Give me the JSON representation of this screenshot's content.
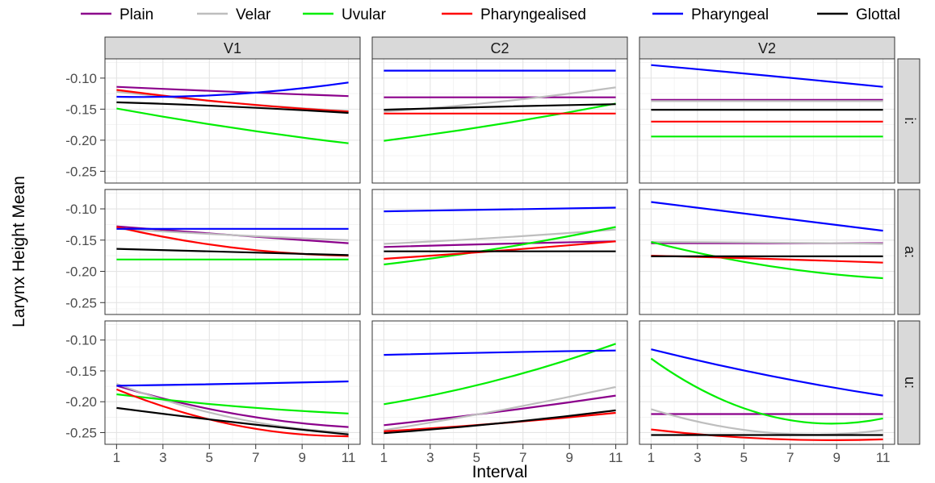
{
  "chart_data": {
    "type": "line",
    "xlabel": "Interval",
    "ylabel": "Larynx Height Mean",
    "columns": [
      "V1",
      "C2",
      "V2"
    ],
    "rows": [
      "i:",
      "a:",
      "u:"
    ],
    "x_ticks": [
      1,
      3,
      5,
      7,
      9,
      11
    ],
    "y_ticks": [
      -0.1,
      -0.15,
      -0.2,
      -0.25
    ],
    "y_tick_labels": [
      "-0.10",
      "-0.15",
      "-0.20",
      "-0.25"
    ],
    "xlim": [
      0.5,
      11.5
    ],
    "ylim": [
      -0.269,
      -0.069
    ],
    "grid": true,
    "legend_position": "top",
    "series": [
      {
        "name": "Plain",
        "color": "#8B008B"
      },
      {
        "name": "Velar",
        "color": "#BEBEBE"
      },
      {
        "name": "Uvular",
        "color": "#00EE00"
      },
      {
        "name": "Pharyngealised",
        "color": "#FF0000"
      },
      {
        "name": "Pharyngeal",
        "color": "#0000FF"
      },
      {
        "name": "Glottal",
        "color": "#000000"
      }
    ],
    "panels": [
      {
        "column": "V1",
        "row": "i:",
        "lines": {
          "Plain": [
            [
              1,
              -0.114
            ],
            [
              6,
              -0.122
            ],
            [
              11,
              -0.129
            ]
          ],
          "Velar": [
            [
              1,
              -0.122
            ],
            [
              6,
              -0.14
            ],
            [
              11,
              -0.153
            ]
          ],
          "Uvular": [
            [
              1,
              -0.149
            ],
            [
              6,
              -0.18
            ],
            [
              11,
              -0.205
            ]
          ],
          "Pharyngealised": [
            [
              1,
              -0.119
            ],
            [
              6,
              -0.14
            ],
            [
              11,
              -0.154
            ]
          ],
          "Pharyngeal": [
            [
              1,
              -0.13
            ],
            [
              6,
              -0.126
            ],
            [
              11,
              -0.107
            ]
          ],
          "Glottal": [
            [
              1,
              -0.139
            ],
            [
              6,
              -0.146
            ],
            [
              11,
              -0.156
            ]
          ]
        }
      },
      {
        "column": "C2",
        "row": "i:",
        "lines": {
          "Plain": [
            [
              1,
              -0.131
            ],
            [
              6,
              -0.131
            ],
            [
              11,
              -0.131
            ]
          ],
          "Velar": [
            [
              1,
              -0.154
            ],
            [
              6,
              -0.138
            ],
            [
              11,
              -0.115
            ]
          ],
          "Uvular": [
            [
              1,
              -0.201
            ],
            [
              6,
              -0.174
            ],
            [
              11,
              -0.141
            ]
          ],
          "Pharyngealised": [
            [
              1,
              -0.157
            ],
            [
              6,
              -0.157
            ],
            [
              11,
              -0.157
            ]
          ],
          "Pharyngeal": [
            [
              1,
              -0.088
            ],
            [
              6,
              -0.088
            ],
            [
              11,
              -0.088
            ]
          ],
          "Glottal": [
            [
              1,
              -0.151
            ],
            [
              6,
              -0.146
            ],
            [
              11,
              -0.142
            ]
          ]
        }
      },
      {
        "column": "V2",
        "row": "i:",
        "lines": {
          "Plain": [
            [
              1,
              -0.135
            ],
            [
              6,
              -0.135
            ],
            [
              11,
              -0.135
            ]
          ],
          "Velar": [
            [
              1,
              -0.137
            ],
            [
              6,
              -0.137
            ],
            [
              11,
              -0.137
            ]
          ],
          "Uvular": [
            [
              1,
              -0.194
            ],
            [
              6,
              -0.194
            ],
            [
              11,
              -0.194
            ]
          ],
          "Pharyngealised": [
            [
              1,
              -0.17
            ],
            [
              6,
              -0.17
            ],
            [
              11,
              -0.17
            ]
          ],
          "Pharyngeal": [
            [
              1,
              -0.079
            ],
            [
              6,
              -0.096
            ],
            [
              11,
              -0.114
            ]
          ],
          "Glottal": [
            [
              1,
              -0.151
            ],
            [
              6,
              -0.151
            ],
            [
              11,
              -0.151
            ]
          ]
        }
      },
      {
        "column": "V1",
        "row": "a:",
        "lines": {
          "Plain": [
            [
              1,
              -0.128
            ],
            [
              6,
              -0.142
            ],
            [
              11,
              -0.155
            ]
          ],
          "Velar": [
            [
              1,
              -0.132
            ],
            [
              6,
              -0.142
            ],
            [
              11,
              -0.15
            ]
          ],
          "Uvular": [
            [
              1,
              -0.181
            ],
            [
              6,
              -0.181
            ],
            [
              11,
              -0.181
            ]
          ],
          "Pharyngealised": [
            [
              1,
              -0.129
            ],
            [
              6,
              -0.162
            ],
            [
              11,
              -0.175
            ]
          ],
          "Pharyngeal": [
            [
              1,
              -0.132
            ],
            [
              6,
              -0.132
            ],
            [
              11,
              -0.132
            ]
          ],
          "Glottal": [
            [
              1,
              -0.164
            ],
            [
              6,
              -0.169
            ],
            [
              11,
              -0.174
            ]
          ]
        }
      },
      {
        "column": "C2",
        "row": "a:",
        "lines": {
          "Plain": [
            [
              1,
              -0.161
            ],
            [
              6,
              -0.156
            ],
            [
              11,
              -0.152
            ]
          ],
          "Velar": [
            [
              1,
              -0.156
            ],
            [
              6,
              -0.146
            ],
            [
              11,
              -0.133
            ]
          ],
          "Uvular": [
            [
              1,
              -0.189
            ],
            [
              6,
              -0.163
            ],
            [
              11,
              -0.129
            ]
          ],
          "Pharyngealised": [
            [
              1,
              -0.18
            ],
            [
              6,
              -0.167
            ],
            [
              11,
              -0.152
            ]
          ],
          "Pharyngeal": [
            [
              1,
              -0.104
            ],
            [
              6,
              -0.101
            ],
            [
              11,
              -0.098
            ]
          ],
          "Glottal": [
            [
              1,
              -0.168
            ],
            [
              6,
              -0.168
            ],
            [
              11,
              -0.168
            ]
          ]
        }
      },
      {
        "column": "V2",
        "row": "a:",
        "lines": {
          "Plain": [
            [
              1,
              -0.155
            ],
            [
              6,
              -0.155
            ],
            [
              11,
              -0.155
            ]
          ],
          "Velar": [
            [
              1,
              -0.153
            ],
            [
              6,
              -0.154
            ],
            [
              11,
              -0.156
            ]
          ],
          "Uvular": [
            [
              1,
              -0.153
            ],
            [
              6,
              -0.191
            ],
            [
              11,
              -0.211
            ]
          ],
          "Pharyngealised": [
            [
              1,
              -0.175
            ],
            [
              6,
              -0.18
            ],
            [
              11,
              -0.186
            ]
          ],
          "Pharyngeal": [
            [
              1,
              -0.089
            ],
            [
              6,
              -0.112
            ],
            [
              11,
              -0.135
            ]
          ],
          "Glottal": [
            [
              1,
              -0.176
            ],
            [
              6,
              -0.176
            ],
            [
              11,
              -0.176
            ]
          ]
        }
      },
      {
        "column": "V1",
        "row": "u:",
        "lines": {
          "Plain": [
            [
              1,
              -0.174
            ],
            [
              6,
              -0.219
            ],
            [
              11,
              -0.241
            ]
          ],
          "Velar": [
            [
              1,
              -0.171
            ],
            [
              6,
              -0.226
            ],
            [
              11,
              -0.25
            ]
          ],
          "Uvular": [
            [
              1,
              -0.188
            ],
            [
              6,
              -0.207
            ],
            [
              11,
              -0.219
            ]
          ],
          "Pharyngealised": [
            [
              1,
              -0.18
            ],
            [
              6,
              -0.237
            ],
            [
              11,
              -0.256
            ]
          ],
          "Pharyngeal": [
            [
              1,
              -0.174
            ],
            [
              6,
              -0.171
            ],
            [
              11,
              -0.167
            ]
          ],
          "Glottal": [
            [
              1,
              -0.21
            ],
            [
              6,
              -0.233
            ],
            [
              11,
              -0.253
            ]
          ]
        }
      },
      {
        "column": "C2",
        "row": "u:",
        "lines": {
          "Plain": [
            [
              1,
              -0.238
            ],
            [
              6,
              -0.216
            ],
            [
              11,
              -0.19
            ]
          ],
          "Velar": [
            [
              1,
              -0.246
            ],
            [
              6,
              -0.214
            ],
            [
              11,
              -0.176
            ]
          ],
          "Uvular": [
            [
              1,
              -0.204
            ],
            [
              6,
              -0.164
            ],
            [
              11,
              -0.106
            ]
          ],
          "Pharyngealised": [
            [
              1,
              -0.248
            ],
            [
              6,
              -0.235
            ],
            [
              11,
              -0.218
            ]
          ],
          "Pharyngeal": [
            [
              1,
              -0.124
            ],
            [
              6,
              -0.12
            ],
            [
              11,
              -0.117
            ]
          ],
          "Glottal": [
            [
              1,
              -0.251
            ],
            [
              6,
              -0.235
            ],
            [
              11,
              -0.214
            ]
          ]
        }
      },
      {
        "column": "V2",
        "row": "u:",
        "lines": {
          "Plain": [
            [
              1,
              -0.22
            ],
            [
              6,
              -0.22
            ],
            [
              11,
              -0.22
            ]
          ],
          "Velar": [
            [
              1,
              -0.212
            ],
            [
              6,
              -0.25
            ],
            [
              11,
              -0.246
            ]
          ],
          "Uvular": [
            [
              1,
              -0.13
            ],
            [
              6,
              -0.222
            ],
            [
              11,
              -0.227
            ]
          ],
          "Pharyngealised": [
            [
              1,
              -0.245
            ],
            [
              6,
              -0.26
            ],
            [
              11,
              -0.261
            ]
          ],
          "Pharyngeal": [
            [
              1,
              -0.115
            ],
            [
              6,
              -0.157
            ],
            [
              11,
              -0.19
            ]
          ],
          "Glottal": [
            [
              1,
              -0.254
            ],
            [
              6,
              -0.254
            ],
            [
              11,
              -0.254
            ]
          ]
        }
      }
    ]
  }
}
